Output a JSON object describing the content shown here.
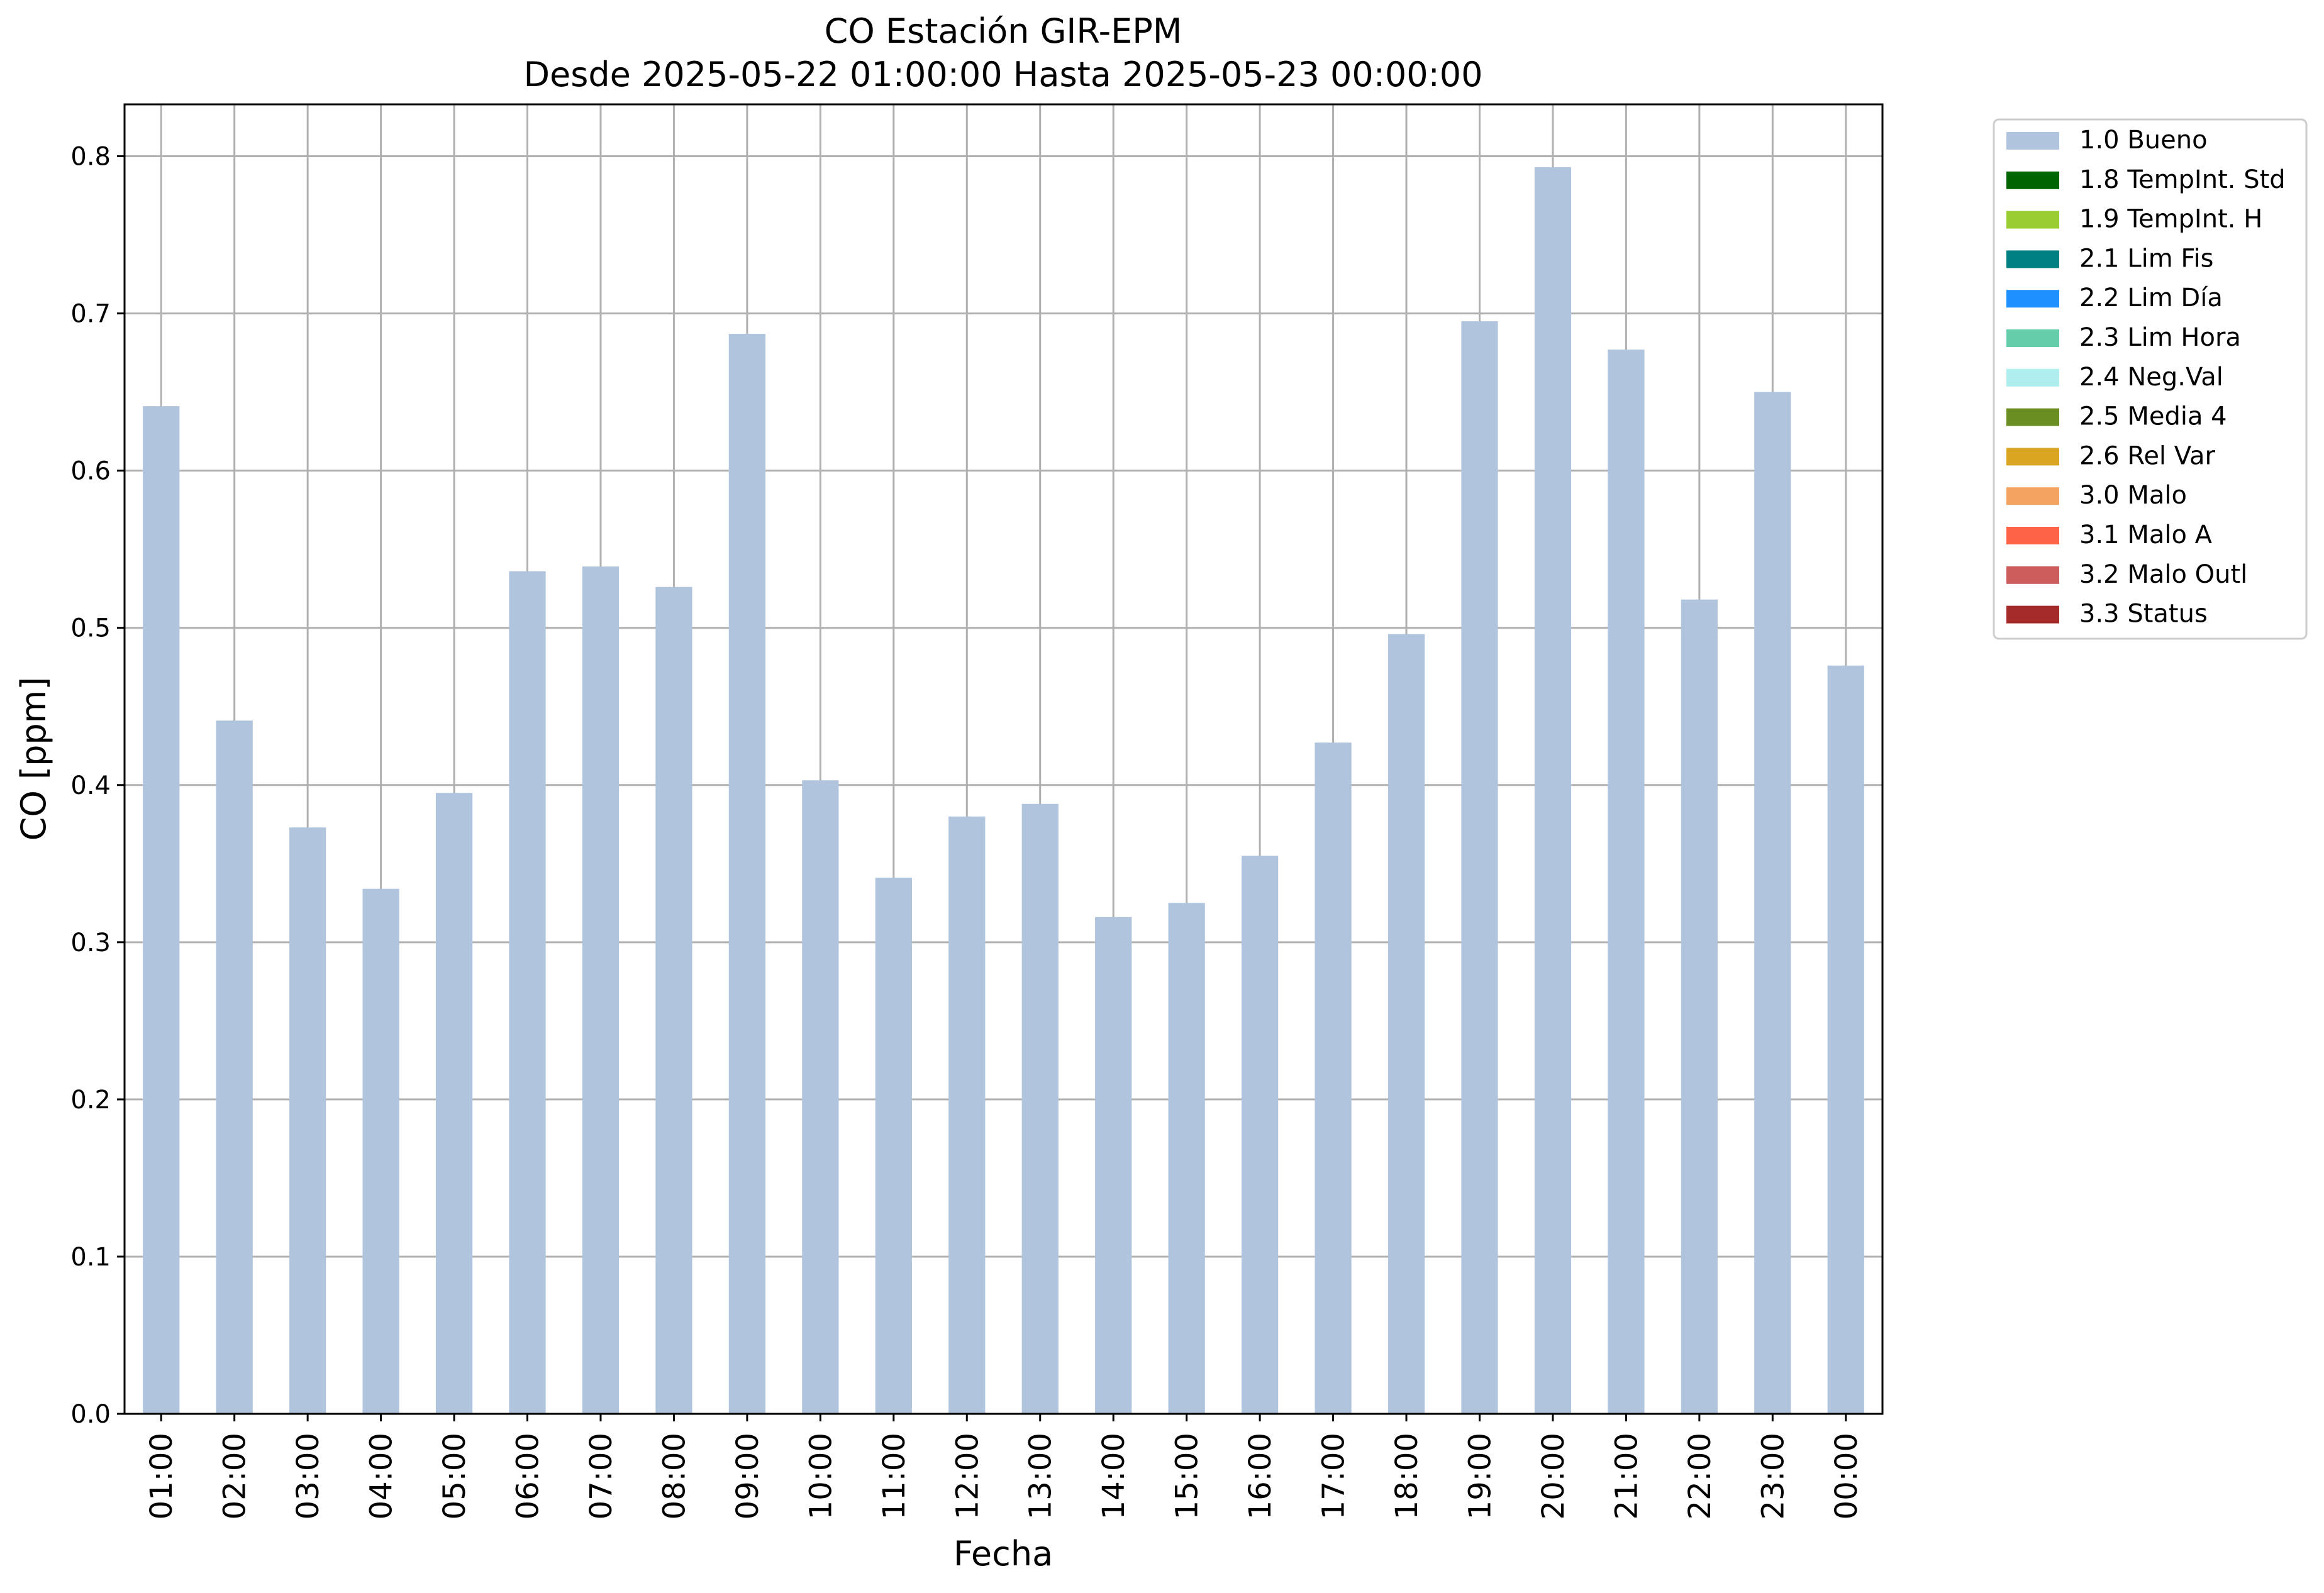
{
  "chart_data": {
    "type": "bar",
    "title": "CO Estación GIR-EPM",
    "subtitle": "Desde 2025-05-22 01:00:00 Hasta 2025-05-23 00:00:00",
    "xlabel": "Fecha",
    "ylabel": "CO [ppm]",
    "ylim": [
      0,
      0.833
    ],
    "yticks": [
      "0.0",
      "0.1",
      "0.2",
      "0.3",
      "0.4",
      "0.5",
      "0.6",
      "0.7",
      "0.8"
    ],
    "grid": true,
    "legend_position": "outside-top-right",
    "categories": [
      "01:00",
      "02:00",
      "03:00",
      "04:00",
      "05:00",
      "06:00",
      "07:00",
      "08:00",
      "09:00",
      "10:00",
      "11:00",
      "12:00",
      "13:00",
      "14:00",
      "15:00",
      "16:00",
      "17:00",
      "18:00",
      "19:00",
      "20:00",
      "21:00",
      "22:00",
      "23:00",
      "00:00"
    ],
    "series": [
      {
        "name": "1.0 Bueno",
        "color": "#b0c4de",
        "values": [
          0.641,
          0.441,
          0.373,
          0.334,
          0.395,
          0.536,
          0.539,
          0.526,
          0.687,
          0.403,
          0.341,
          0.38,
          0.388,
          0.316,
          0.325,
          0.355,
          0.427,
          0.496,
          0.695,
          0.793,
          0.677,
          0.518,
          0.65,
          0.476
        ]
      }
    ],
    "legend": [
      {
        "label": "1.0 Bueno",
        "color": "#b0c4de"
      },
      {
        "label": "1.8 TempInt. Std",
        "color": "#006400"
      },
      {
        "label": "1.9 TempInt. H",
        "color": "#9acd32"
      },
      {
        "label": "2.1 Lim Fis",
        "color": "#008080"
      },
      {
        "label": "2.2 Lim Día",
        "color": "#1e90ff"
      },
      {
        "label": "2.3 Lim Hora",
        "color": "#66cdaa"
      },
      {
        "label": "2.4 Neg.Val",
        "color": "#afeeee"
      },
      {
        "label": "2.5 Media 4",
        "color": "#6b8e23"
      },
      {
        "label": "2.6 Rel Var",
        "color": "#daa520"
      },
      {
        "label": "3.0 Malo",
        "color": "#f4a460"
      },
      {
        "label": "3.1 Malo A",
        "color": "#ff6347"
      },
      {
        "label": "3.2 Malo Outl",
        "color": "#cd5c5c"
      },
      {
        "label": "3.3 Status",
        "color": "#a52a2a"
      }
    ]
  }
}
